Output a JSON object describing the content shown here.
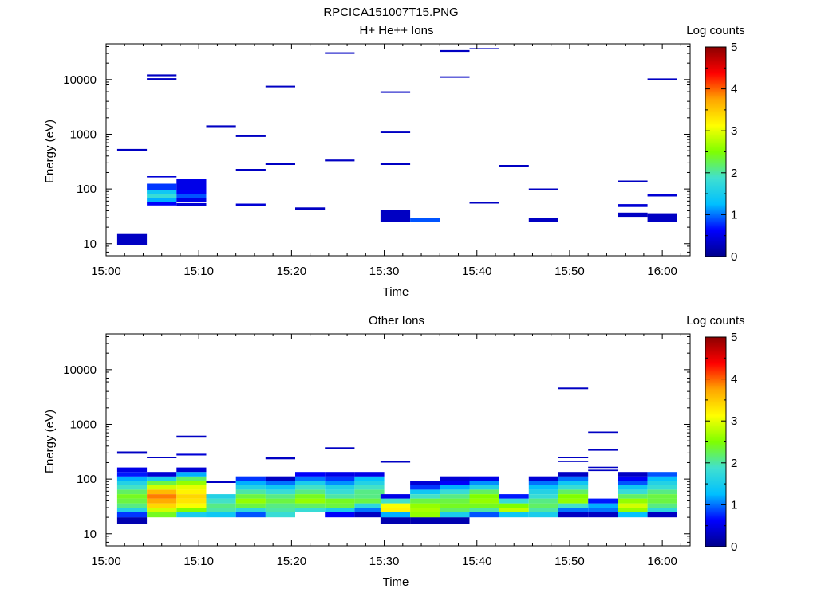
{
  "figure_title": "RPCICA151007T15.PNG",
  "colorbar_scale": [
    "#00008b",
    "#0000ff",
    "#00bfff",
    "#40e0d0",
    "#7fff00",
    "#ffff00",
    "#ffa500",
    "#ff0000",
    "#8b0000"
  ],
  "chart_data": [
    {
      "type": "heatmap",
      "title": "H+ He++ Ions",
      "xlabel": "Time",
      "ylabel": "Energy (eV)",
      "colorbar_label": "Log counts",
      "colorbar_range": [
        0,
        5
      ],
      "colorbar_ticks": [
        "0",
        "1",
        "2",
        "3",
        "4",
        "5"
      ],
      "x_range_minutes": [
        0,
        63
      ],
      "x_ticks": [
        {
          "t": 0,
          "label": "15:00"
        },
        {
          "t": 10,
          "label": "15:10"
        },
        {
          "t": 20,
          "label": "15:20"
        },
        {
          "t": 30,
          "label": "15:30"
        },
        {
          "t": 40,
          "label": "15:40"
        },
        {
          "t": 50,
          "label": "15:50"
        },
        {
          "t": 60,
          "label": "16:00"
        }
      ],
      "y_log_range": [
        6,
        45000
      ],
      "y_ticks": [
        {
          "v": 10,
          "label": "10"
        },
        {
          "v": 100,
          "label": "100"
        },
        {
          "v": 1000,
          "label": "1000"
        },
        {
          "v": 10000,
          "label": "10000"
        }
      ],
      "column_width_min": 3.2,
      "cells": [
        [
          1.2,
          9.5,
          15,
          0.3
        ],
        [
          1.2,
          500,
          540,
          0.3
        ],
        [
          4.4,
          50,
          58,
          0.6
        ],
        [
          4.4,
          58,
          68,
          1.2
        ],
        [
          4.4,
          68,
          80,
          1.8
        ],
        [
          4.4,
          80,
          95,
          1.4
        ],
        [
          4.4,
          95,
          125,
          0.8
        ],
        [
          4.4,
          163,
          172,
          0.4
        ],
        [
          4.4,
          9800,
          10600,
          0.3
        ],
        [
          4.4,
          11500,
          12400,
          0.3
        ],
        [
          7.6,
          48,
          55,
          0.4
        ],
        [
          7.6,
          58,
          68,
          0.5
        ],
        [
          7.6,
          68,
          80,
          0.9
        ],
        [
          7.6,
          80,
          95,
          0.6
        ],
        [
          7.6,
          95,
          150,
          0.5
        ],
        [
          10.8,
          1350,
          1450,
          0.3
        ],
        [
          14.0,
          48,
          54,
          0.4
        ],
        [
          14.0,
          215,
          232,
          0.3
        ],
        [
          14.0,
          890,
          950,
          0.3
        ],
        [
          17.2,
          275,
          300,
          0.3
        ],
        [
          17.2,
          7200,
          7700,
          0.3
        ],
        [
          20.4,
          42,
          46,
          0.3
        ],
        [
          23.6,
          320,
          345,
          0.3
        ],
        [
          23.6,
          29500,
          31500,
          0.3
        ],
        [
          29.6,
          25,
          41,
          0.3
        ],
        [
          29.6,
          275,
          300,
          0.3
        ],
        [
          29.6,
          1050,
          1120,
          0.3
        ],
        [
          29.6,
          5700,
          6100,
          0.3
        ],
        [
          32.8,
          25,
          30,
          0.9
        ],
        [
          36.0,
          10800,
          11500,
          0.3
        ],
        [
          36.0,
          32000,
          34500,
          0.3
        ],
        [
          39.2,
          54,
          58,
          0.3
        ],
        [
          39.2,
          35500,
          37500,
          0.3
        ],
        [
          42.4,
          255,
          275,
          0.3
        ],
        [
          45.6,
          25,
          30,
          0.3
        ],
        [
          45.6,
          94,
          102,
          0.3
        ],
        [
          55.2,
          31,
          37,
          0.3
        ],
        [
          55.2,
          47,
          53,
          0.4
        ],
        [
          55.2,
          133,
          143,
          0.3
        ],
        [
          58.4,
          25,
          36,
          0.3
        ],
        [
          58.4,
          73,
          80,
          0.4
        ],
        [
          58.4,
          9800,
          10500,
          0.3
        ]
      ]
    },
    {
      "type": "heatmap",
      "title": "Other Ions",
      "xlabel": "Time",
      "ylabel": "Energy (eV)",
      "colorbar_label": "Log counts",
      "colorbar_range": [
        0,
        5
      ],
      "colorbar_ticks": [
        "0",
        "1",
        "2",
        "3",
        "4",
        "5"
      ],
      "x_range_minutes": [
        0,
        63
      ],
      "x_ticks": [
        {
          "t": 0,
          "label": "15:00"
        },
        {
          "t": 10,
          "label": "15:10"
        },
        {
          "t": 20,
          "label": "15:20"
        },
        {
          "t": 30,
          "label": "15:30"
        },
        {
          "t": 40,
          "label": "15:40"
        },
        {
          "t": 50,
          "label": "15:50"
        },
        {
          "t": 60,
          "label": "16:00"
        }
      ],
      "y_log_range": [
        6,
        45000
      ],
      "y_ticks": [
        {
          "v": 10,
          "label": "10"
        },
        {
          "v": 100,
          "label": "100"
        },
        {
          "v": 1000,
          "label": "1000"
        },
        {
          "v": 10000,
          "label": "10000"
        }
      ],
      "column_width_min": 3.2,
      "profiles": [
        {
          "t": 1.2,
          "values": [
            0.2,
            0.8,
            1.6,
            2.1,
            2.3,
            2.4,
            2.2,
            1.9,
            1.6,
            1.2,
            0.7,
            0.5
          ],
          "extra": [
            [
              290,
              320,
              0.3
            ]
          ]
        },
        {
          "t": 4.4,
          "values": [
            null,
            2.4,
            2.9,
            3.4,
            3.7,
            3.9,
            3.6,
            2.9,
            2.3,
            1.5,
            0.4,
            null
          ],
          "extra": [
            [
              240,
              255,
              0.3
            ]
          ]
        },
        {
          "t": 7.6,
          "values": [
            null,
            1.5,
            2.5,
            3.1,
            3.3,
            3.4,
            3.2,
            3.0,
            2.6,
            2.2,
            1.2,
            0.4
          ],
          "extra": [
            [
              270,
              290,
              0.4
            ],
            [
              570,
              620,
              0.3
            ]
          ]
        },
        {
          "t": 10.8,
          "values": [
            null,
            1.4,
            2.0,
            2.1,
            1.9,
            1.6,
            null,
            null,
            null,
            null,
            null,
            null
          ],
          "extra": [
            [
              85,
              92,
              0.3
            ]
          ]
        },
        {
          "t": 14.0,
          "values": [
            null,
            0.9,
            1.7,
            2.3,
            2.6,
            2.3,
            2.0,
            1.6,
            1.2,
            0.8,
            null,
            null
          ]
        },
        {
          "t": 17.2,
          "values": [
            null,
            1.8,
            2.0,
            2.1,
            2.3,
            2.1,
            1.8,
            1.4,
            1.0,
            0.3,
            null,
            null
          ],
          "extra": [
            [
              230,
              250,
              0.3
            ]
          ]
        },
        {
          "t": 20.4,
          "values": [
            null,
            null,
            1.8,
            2.2,
            2.6,
            2.4,
            2.1,
            1.9,
            1.5,
            1.0,
            0.6,
            null
          ]
        },
        {
          "t": 23.6,
          "values": [
            null,
            0.6,
            1.5,
            2.3,
            2.4,
            2.0,
            1.8,
            1.6,
            1.1,
            0.8,
            0.5,
            null
          ],
          "extra": [
            [
              350,
              380,
              0.3
            ]
          ]
        },
        {
          "t": 26.8,
          "values": [
            null,
            0.3,
            1.0,
            1.7,
            2.3,
            2.1,
            2.1,
            1.9,
            1.6,
            1.3,
            0.5,
            null
          ]
        },
        {
          "t": 29.6,
          "values": [
            0.2,
            1.2,
            3.2,
            3.1,
            1.9,
            0.5,
            null,
            null,
            null,
            null,
            null,
            null
          ],
          "extra": [
            [
              200,
              215,
              0.3
            ]
          ]
        },
        {
          "t": 32.8,
          "values": [
            0.2,
            2.6,
            2.7,
            2.6,
            2.3,
            1.9,
            1.4,
            0.8,
            0.4,
            null,
            null,
            null
          ]
        },
        {
          "t": 36.0,
          "values": [
            0.2,
            1.5,
            2.2,
            2.4,
            2.3,
            2.1,
            1.8,
            1.2,
            0.6,
            0.4,
            null,
            null
          ]
        },
        {
          "t": 39.2,
          "values": [
            null,
            0.9,
            2.0,
            2.4,
            2.6,
            2.5,
            2.2,
            1.6,
            1.1,
            0.5,
            null,
            null
          ]
        },
        {
          "t": 42.4,
          "values": [
            null,
            1.4,
            2.8,
            2.5,
            1.8,
            0.7,
            null,
            null,
            null,
            null,
            null,
            null
          ]
        },
        {
          "t": 45.6,
          "values": [
            null,
            1.5,
            2.0,
            2.2,
            2.1,
            1.8,
            1.6,
            1.3,
            1.0,
            0.4,
            null,
            null
          ]
        },
        {
          "t": 48.8,
          "values": [
            null,
            0.3,
            1.0,
            1.9,
            2.6,
            2.5,
            2.2,
            1.8,
            1.4,
            1.0,
            0.3,
            null
          ],
          "extra": [
            [
              240,
              255,
              0.3
            ],
            [
              205,
              215,
              0.3
            ],
            [
              4400,
              4700,
              0.3
            ]
          ]
        },
        {
          "t": 52.0,
          "values": [
            null,
            0.3,
            1.0,
            1.2,
            0.7,
            null,
            null,
            null,
            null,
            null,
            null,
            null
          ],
          "extra": [
            [
              160,
              168,
              0.3
            ],
            [
              140,
              148,
              0.3
            ],
            [
              330,
              350,
              0.3
            ],
            [
              700,
              740,
              0.3
            ]
          ]
        },
        {
          "t": 55.2,
          "values": [
            null,
            1.3,
            2.6,
            2.9,
            2.6,
            2.2,
            1.8,
            1.4,
            0.9,
            0.6,
            0.3,
            null
          ]
        },
        {
          "t": 58.4,
          "values": [
            null,
            0.3,
            1.7,
            2.1,
            2.3,
            2.3,
            2.1,
            1.8,
            1.6,
            1.3,
            0.9,
            null
          ]
        }
      ],
      "profile_energy_bins": [
        15,
        20,
        25,
        30,
        36,
        44,
        53,
        64,
        77,
        93,
        112,
        135,
        163
      ]
    }
  ]
}
